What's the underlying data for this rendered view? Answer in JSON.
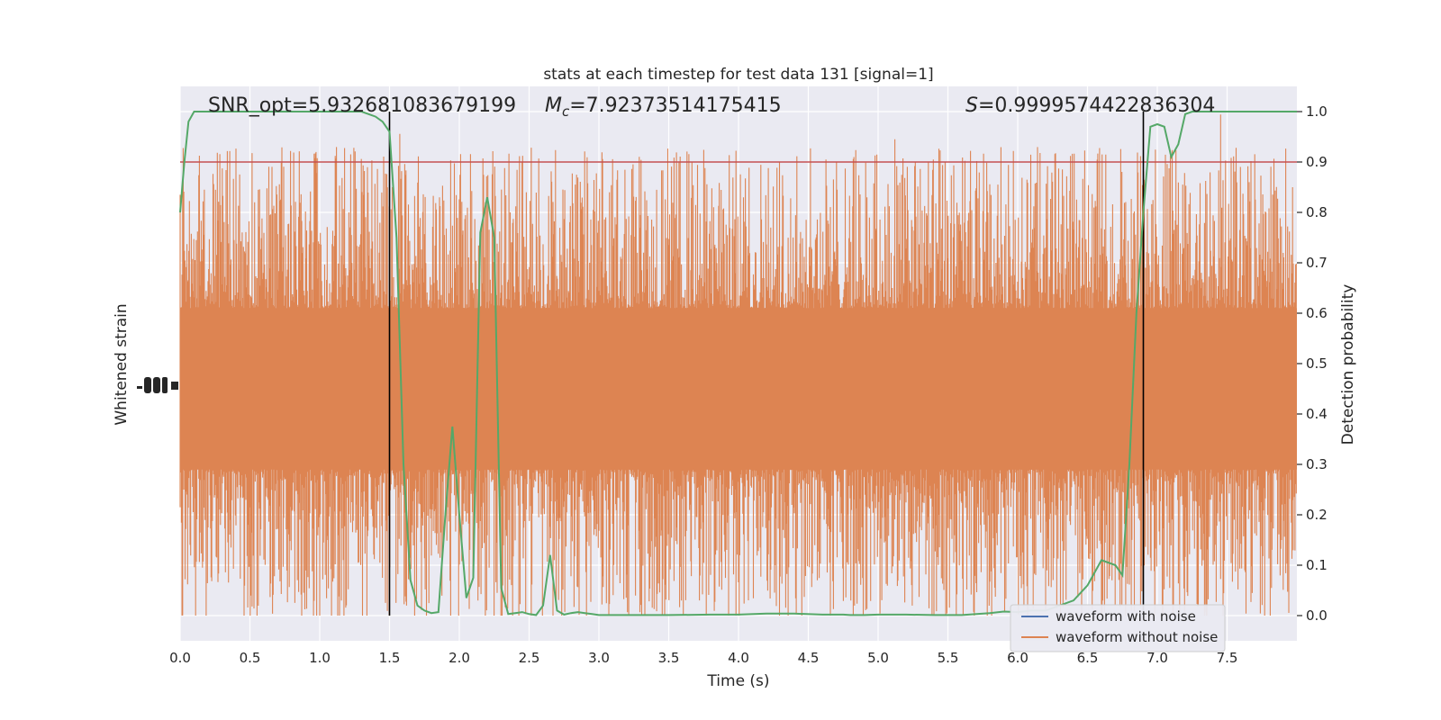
{
  "chart_data": {
    "type": "line",
    "title": "stats at each timestep for test data 131 [signal=1]",
    "xlabel": "Time (s)",
    "ylabel_left": "Whitened strain",
    "ylabel_right": "Detection probability",
    "xlim": [
      0,
      8
    ],
    "ylim_right": [
      -0.05,
      1.05
    ],
    "x_ticks": [
      "0.0",
      "0.5",
      "1.0",
      "1.5",
      "2.0",
      "2.5",
      "3.0",
      "3.5",
      "4.0",
      "4.5",
      "5.0",
      "5.5",
      "6.0",
      "6.5",
      "7.0",
      "7.5"
    ],
    "y_ticks_right": [
      "0.0",
      "0.1",
      "0.2",
      "0.3",
      "0.4",
      "0.5",
      "0.6",
      "0.7",
      "0.8",
      "0.9",
      "1.0"
    ],
    "grid": true,
    "legend_position": "lower-right",
    "annotations": {
      "snr": "SNR_opt=5.932681083679199",
      "mc_symbol": "M",
      "mc_sub": "c",
      "mc_value": "=7.92373514175415",
      "s_symbol": "S",
      "s_value": "=0.9999574422836304"
    },
    "threshold": 0.9,
    "vlines": [
      1.5,
      6.9
    ],
    "series": [
      {
        "name": "waveform with noise",
        "color": "#4c72b0",
        "values": []
      },
      {
        "name": "waveform without noise",
        "color": "#dd8452",
        "band": {
          "center": 0.45,
          "core_half_width": 0.16,
          "spike_top": 1.0,
          "spike_bottom": 0.0
        }
      },
      {
        "name": "detection probability",
        "color": "#55a868",
        "x": [
          0.0,
          0.03,
          0.06,
          0.1,
          0.15,
          0.2,
          0.3,
          0.5,
          0.7,
          0.9,
          1.1,
          1.3,
          1.4,
          1.45,
          1.5,
          1.55,
          1.6,
          1.65,
          1.7,
          1.75,
          1.8,
          1.85,
          1.9,
          1.95,
          2.0,
          2.05,
          2.1,
          2.15,
          2.2,
          2.25,
          2.3,
          2.35,
          2.4,
          2.45,
          2.5,
          2.55,
          2.6,
          2.65,
          2.7,
          2.75,
          2.8,
          2.85,
          2.9,
          2.95,
          3.0,
          3.05,
          3.1,
          3.15,
          3.2,
          3.5,
          3.8,
          4.0,
          4.2,
          4.4,
          4.6,
          4.7,
          4.75,
          4.8,
          4.85,
          4.9,
          5.0,
          5.2,
          5.4,
          5.6,
          5.8,
          5.9,
          6.0,
          6.1,
          6.2,
          6.3,
          6.4,
          6.5,
          6.6,
          6.7,
          6.75,
          6.8,
          6.85,
          6.9,
          6.95,
          7.0,
          7.05,
          7.1,
          7.15,
          7.2,
          7.25,
          7.3,
          7.5,
          7.8,
          8.0
        ],
        "values": [
          0.8,
          0.9,
          0.98,
          1.0,
          1.0,
          1.0,
          1.0,
          1.0,
          1.0,
          1.0,
          1.0,
          1.0,
          0.99,
          0.98,
          0.96,
          0.75,
          0.3,
          0.07,
          0.02,
          0.01,
          0.005,
          0.007,
          0.2,
          0.375,
          0.2,
          0.035,
          0.075,
          0.76,
          0.83,
          0.75,
          0.055,
          0.003,
          0.005,
          0.007,
          0.003,
          0.001,
          0.02,
          0.12,
          0.01,
          0.002,
          0.005,
          0.007,
          0.005,
          0.003,
          0.001,
          0.001,
          0.001,
          0.001,
          0.001,
          0.001,
          0.002,
          0.002,
          0.004,
          0.004,
          0.002,
          0.002,
          0.002,
          0.001,
          0.001,
          0.001,
          0.002,
          0.002,
          0.001,
          0.001,
          0.005,
          0.008,
          0.007,
          0.01,
          0.01,
          0.02,
          0.03,
          0.06,
          0.11,
          0.1,
          0.08,
          0.3,
          0.6,
          0.8,
          0.97,
          0.975,
          0.97,
          0.91,
          0.935,
          0.995,
          1.0,
          1.0,
          1.0,
          1.0,
          1.0
        ]
      }
    ],
    "colors": {
      "background": "#eaeaf2",
      "grid": "#ffffff",
      "threshold_line": "#c44e52",
      "vline": "#000000",
      "text": "#262626"
    }
  }
}
